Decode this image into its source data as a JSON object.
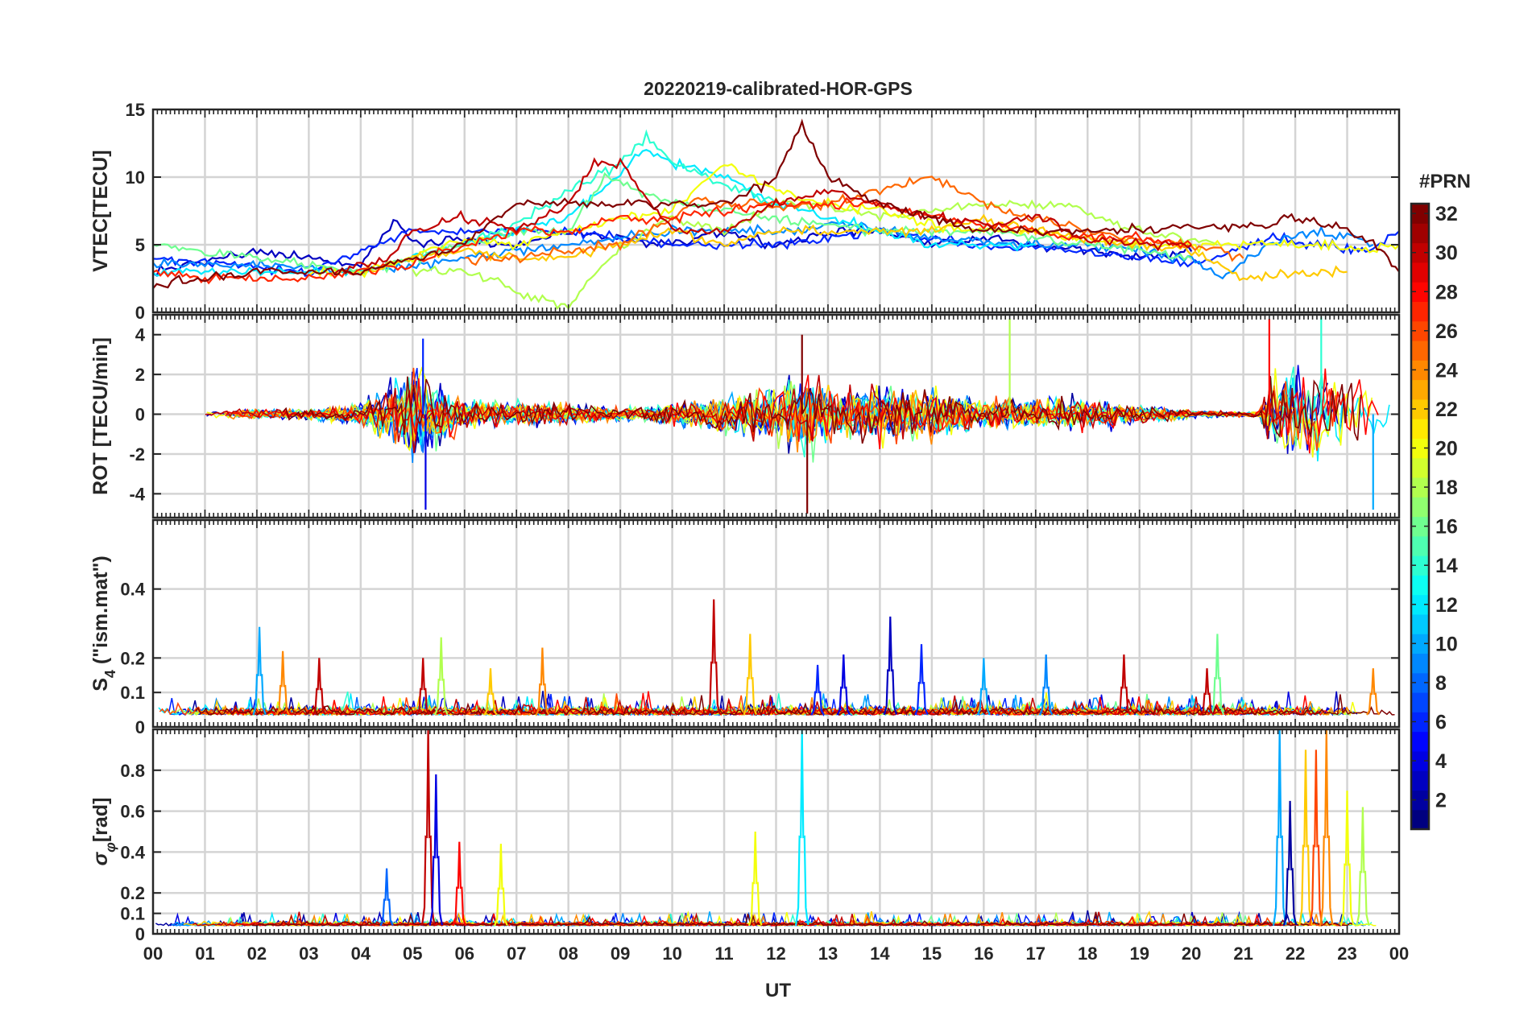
{
  "title": "20220219-calibrated-HOR-GPS",
  "x_axis": {
    "label": "UT",
    "ticks": [
      "00",
      "01",
      "02",
      "03",
      "04",
      "05",
      "06",
      "07",
      "08",
      "09",
      "10",
      "11",
      "12",
      "13",
      "14",
      "15",
      "16",
      "17",
      "18",
      "19",
      "20",
      "21",
      "22",
      "23",
      "00"
    ],
    "range_hours": [
      0,
      24
    ]
  },
  "colorbar": {
    "label": "#PRN",
    "range": [
      1,
      32
    ],
    "ticks": [
      2,
      4,
      6,
      8,
      10,
      12,
      14,
      16,
      18,
      20,
      22,
      24,
      26,
      28,
      30,
      32
    ],
    "colormap": "jet"
  },
  "chart_data": [
    {
      "type": "line",
      "panel": "vtec",
      "ylabel": "VTEC[TECU]",
      "ylim": [
        0,
        15
      ],
      "yticks": [
        0,
        5,
        10,
        15
      ],
      "grid": true,
      "series": [
        {
          "prn": 3,
          "x": [
            0,
            2,
            4,
            4.7,
            5,
            6,
            7,
            8,
            9,
            10,
            11,
            12,
            13,
            14,
            15,
            16,
            17,
            18,
            19,
            20
          ],
          "y": [
            3,
            4.5,
            3.5,
            7,
            5,
            5.5,
            5,
            6,
            5.5,
            5,
            6,
            5,
            6,
            6,
            5,
            5.5,
            5,
            4.5,
            4,
            4.5
          ]
        },
        {
          "prn": 6,
          "x": [
            0,
            1.5,
            3,
            4.3,
            5,
            6.5,
            8,
            10,
            12,
            14,
            16,
            18,
            20,
            21.5,
            22.5,
            23.5,
            24
          ],
          "y": [
            4,
            3.5,
            3,
            5,
            6,
            6,
            6,
            5,
            5,
            6,
            5,
            4.5,
            3.5,
            5.5,
            5,
            4.5,
            6
          ]
        },
        {
          "prn": 9,
          "x": [
            0,
            2,
            4,
            6,
            8,
            10,
            12,
            13.5,
            15,
            16.5,
            18,
            20,
            20.6,
            21.5,
            22.5,
            23.5
          ],
          "y": [
            3.5,
            3.5,
            3,
            4,
            5,
            6,
            6,
            6.5,
            5.5,
            5,
            5,
            4,
            2.5,
            5,
            6,
            5
          ]
        },
        {
          "prn": 12,
          "x": [
            0,
            2,
            4,
            6,
            8,
            9.5,
            10,
            11,
            12,
            13,
            14,
            15,
            16,
            17
          ],
          "y": [
            3,
            3,
            3,
            5,
            7,
            12,
            11,
            10,
            8,
            7,
            6,
            5,
            5,
            5
          ]
        },
        {
          "prn": 14,
          "x": [
            6,
            7,
            8,
            9,
            9.5,
            10,
            11,
            12
          ],
          "y": [
            5,
            6.5,
            9,
            11,
            13,
            11,
            9.5,
            8
          ]
        },
        {
          "prn": 16,
          "x": [
            0,
            2,
            4,
            6,
            7,
            8,
            8.7,
            10,
            12,
            14,
            16,
            17,
            18,
            19,
            20
          ],
          "y": [
            5,
            4,
            3,
            5,
            6,
            6,
            10,
            8,
            7,
            6,
            6,
            5.5,
            5,
            4.5,
            4
          ]
        },
        {
          "prn": 18,
          "x": [
            5,
            6,
            6.5,
            7,
            8,
            9,
            10,
            11,
            12,
            13,
            14,
            16,
            17.5,
            19,
            20.5
          ],
          "y": [
            3,
            3,
            2.5,
            1.5,
            0.5,
            5,
            7,
            6,
            8,
            8,
            7,
            8,
            8,
            6,
            5
          ]
        },
        {
          "prn": 20,
          "x": [
            3,
            4,
            5,
            6,
            7,
            8,
            9,
            10,
            11,
            12,
            13,
            14,
            15,
            16,
            17,
            18,
            19,
            20,
            21.5,
            22.5,
            23.5,
            24
          ],
          "y": [
            3,
            3,
            4,
            5.5,
            5,
            6,
            7,
            7.5,
            11,
            9,
            8,
            7.5,
            6.5,
            6,
            6,
            5.5,
            5,
            5,
            5,
            5,
            4.5,
            5
          ]
        },
        {
          "prn": 22,
          "x": [
            4,
            5,
            6,
            7,
            8,
            9,
            10,
            11,
            12,
            13,
            14,
            15,
            16,
            17,
            18,
            19,
            20,
            21,
            22,
            23
          ],
          "y": [
            3,
            4,
            4.5,
            4,
            4,
            5,
            6,
            5,
            6,
            6,
            6,
            6,
            7,
            6,
            5.5,
            5,
            4.5,
            2.5,
            3,
            3
          ]
        },
        {
          "prn": 25,
          "x": [
            6,
            7,
            8,
            9,
            10,
            10.5,
            11,
            12,
            13,
            14,
            15,
            16,
            17,
            18,
            19,
            20,
            21
          ],
          "y": [
            4,
            4,
            4.5,
            5,
            7,
            8.5,
            8,
            8,
            8,
            9,
            10,
            8,
            7,
            6,
            5.5,
            5,
            4
          ]
        },
        {
          "prn": 27,
          "x": [
            0,
            1,
            2,
            3,
            4,
            5,
            6,
            7,
            8,
            9,
            10,
            11,
            12,
            13,
            14,
            15,
            16,
            17,
            18,
            19,
            20
          ],
          "y": [
            3,
            2.5,
            2.5,
            2.5,
            3,
            3.5,
            5,
            6,
            6,
            7,
            7,
            7.5,
            8,
            8,
            8,
            7,
            6.5,
            6,
            5.5,
            5.5,
            5
          ]
        },
        {
          "prn": 30,
          "x": [
            3.5,
            4.5,
            5,
            6,
            7,
            8,
            8.5,
            9,
            10,
            11,
            12,
            13,
            14,
            15,
            16,
            17,
            18,
            19,
            20
          ],
          "y": [
            3,
            4,
            6,
            7,
            6,
            8,
            11,
            11,
            6,
            6,
            8,
            9,
            8,
            7,
            6.5,
            7,
            5.5,
            5,
            5
          ]
        },
        {
          "prn": 32,
          "x": [
            0,
            1,
            2,
            3,
            4,
            5,
            6,
            7,
            11,
            12,
            12.5,
            13,
            14,
            15,
            16,
            17,
            18,
            21.5,
            22,
            22.5,
            23,
            23.5,
            24
          ],
          "y": [
            2,
            2.5,
            3,
            3,
            3,
            4,
            5,
            8,
            8,
            10,
            14,
            10,
            8,
            7,
            6,
            6,
            6,
            6.5,
            7,
            6.5,
            6,
            5,
            3
          ]
        }
      ]
    },
    {
      "type": "line",
      "panel": "rot",
      "ylabel": "ROT [TECU/min]",
      "ylim": [
        -5.2,
        5
      ],
      "yticks": [
        -4,
        -2,
        0,
        2,
        4
      ],
      "grid": true,
      "activity_profile": {
        "x": [
          0,
          1,
          2,
          3,
          3.5,
          4,
          4.5,
          5,
          5.5,
          6,
          7,
          8,
          9,
          10,
          11,
          12,
          12.5,
          13,
          14,
          15,
          16,
          17,
          18,
          19,
          20,
          21,
          21.3,
          21.5,
          22,
          23,
          24
        ],
        "amplitude": [
          0.3,
          0.3,
          0.4,
          0.4,
          0.6,
          1,
          2,
          3.5,
          2.5,
          1.2,
          0.9,
          0.8,
          0.5,
          0.8,
          1.5,
          2.2,
          3.5,
          2.3,
          2.2,
          2,
          1.2,
          1.2,
          1.2,
          0.8,
          0.3,
          0.2,
          0.2,
          3,
          3.8,
          3.2,
          2.2
        ]
      },
      "notable_peaks": [
        {
          "x": 5.2,
          "y": 3.8,
          "prn": 6
        },
        {
          "x": 5.25,
          "y": -4.8,
          "prn": 4
        },
        {
          "x": 12.5,
          "y": 4.0,
          "prn": 32
        },
        {
          "x": 12.6,
          "y": -5.0,
          "prn": 32
        },
        {
          "x": 16.5,
          "y": 4.8,
          "prn": 18
        },
        {
          "x": 21.5,
          "y": 4.8,
          "prn": 28
        },
        {
          "x": 22.5,
          "y": 4.9,
          "prn": 14
        },
        {
          "x": 23.5,
          "y": -4.8,
          "prn": 10
        }
      ]
    },
    {
      "type": "line",
      "panel": "s4",
      "ylabel": "S4 (\"ism.mat\")",
      "ylim": [
        0,
        0.6
      ],
      "yticks": [
        0,
        0.1,
        0.2,
        0.4
      ],
      "grid": true,
      "notable_peaks": [
        {
          "x": 2.05,
          "y": 0.29,
          "prn": 10
        },
        {
          "x": 2.5,
          "y": 0.22,
          "prn": 24
        },
        {
          "x": 3.2,
          "y": 0.2,
          "prn": 30
        },
        {
          "x": 5.2,
          "y": 0.2,
          "prn": 30
        },
        {
          "x": 5.55,
          "y": 0.26,
          "prn": 18
        },
        {
          "x": 6.5,
          "y": 0.17,
          "prn": 22
        },
        {
          "x": 7.5,
          "y": 0.23,
          "prn": 24
        },
        {
          "x": 10.8,
          "y": 0.37,
          "prn": 30
        },
        {
          "x": 11.5,
          "y": 0.27,
          "prn": 22
        },
        {
          "x": 12.8,
          "y": 0.18,
          "prn": 6
        },
        {
          "x": 13.3,
          "y": 0.21,
          "prn": 4
        },
        {
          "x": 14.2,
          "y": 0.32,
          "prn": 3
        },
        {
          "x": 14.8,
          "y": 0.24,
          "prn": 6
        },
        {
          "x": 16,
          "y": 0.2,
          "prn": 10
        },
        {
          "x": 17.2,
          "y": 0.21,
          "prn": 9
        },
        {
          "x": 18.7,
          "y": 0.21,
          "prn": 30
        },
        {
          "x": 20.5,
          "y": 0.27,
          "prn": 16
        },
        {
          "x": 20.3,
          "y": 0.17,
          "prn": 30
        },
        {
          "x": 23.5,
          "y": 0.17,
          "prn": 24
        }
      ]
    },
    {
      "type": "line",
      "panel": "sigma_phi",
      "ylabel": "σφ[rad]",
      "ylim": [
        0,
        1
      ],
      "yticks": [
        0,
        0.1,
        0.2,
        0.4,
        0.6,
        0.8
      ],
      "grid": true,
      "notable_peaks": [
        {
          "x": 4.5,
          "y": 0.32,
          "prn": 8
        },
        {
          "x": 5.3,
          "y": 1.0,
          "prn": 30
        },
        {
          "x": 5.45,
          "y": 0.78,
          "prn": 4
        },
        {
          "x": 5.9,
          "y": 0.45,
          "prn": 28
        },
        {
          "x": 6.7,
          "y": 0.44,
          "prn": 20
        },
        {
          "x": 11.6,
          "y": 0.5,
          "prn": 20
        },
        {
          "x": 12.5,
          "y": 1.0,
          "prn": 12
        },
        {
          "x": 21.7,
          "y": 1.0,
          "prn": 10
        },
        {
          "x": 21.9,
          "y": 0.65,
          "prn": 2
        },
        {
          "x": 22.2,
          "y": 0.9,
          "prn": 22
        },
        {
          "x": 22.4,
          "y": 0.9,
          "prn": 26
        },
        {
          "x": 22.6,
          "y": 1.0,
          "prn": 24
        },
        {
          "x": 23.0,
          "y": 0.7,
          "prn": 20
        },
        {
          "x": 23.3,
          "y": 0.62,
          "prn": 18
        }
      ]
    }
  ]
}
